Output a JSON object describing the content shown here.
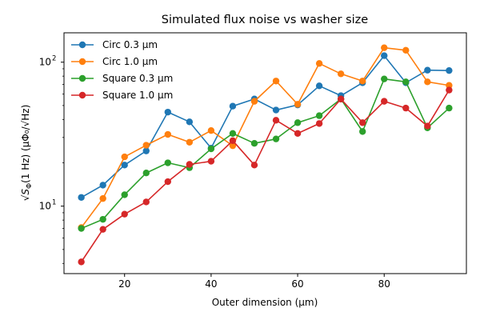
{
  "chart_data": {
    "type": "line",
    "title": "Simulated flux noise vs washer size",
    "xlabel": "Outer dimension (μm)",
    "ylabel": "√S_Φ(1 Hz)   (μΦ₀/√Hz)",
    "xlim": [
      6,
      99
    ],
    "ylim": [
      3.4,
      160
    ],
    "yscale": "log",
    "x_ticks": [
      20,
      40,
      60,
      80
    ],
    "y_ticks": [
      {
        "value": 10,
        "label": "10",
        "sup": "1"
      },
      {
        "value": 100,
        "label": "10",
        "sup": "2"
      }
    ],
    "grid": false,
    "legend_position": "top-left",
    "x": [
      10,
      15,
      20,
      25,
      30,
      35,
      40,
      45,
      50,
      55,
      60,
      65,
      70,
      75,
      80,
      85,
      90,
      95
    ],
    "series": [
      {
        "name": "Circ 0.3 μm",
        "color": "#1f77b4",
        "values": [
          11.5,
          14,
          19.3,
          24.2,
          45,
          38.5,
          25.3,
          49.5,
          55.5,
          46.5,
          50.5,
          68.5,
          58.5,
          72,
          111,
          72,
          88,
          87.5
        ]
      },
      {
        "name": "Circ 1.0 μm",
        "color": "#ff7f0e",
        "values": [
          7.1,
          11.3,
          22,
          26.5,
          31.5,
          27.8,
          33.5,
          26.3,
          53.5,
          74,
          51,
          98,
          83,
          74,
          126,
          121,
          73,
          69
        ]
      },
      {
        "name": "Square 0.3 μm",
        "color": "#2ca02c",
        "values": [
          7,
          8.1,
          12,
          17,
          20,
          18.5,
          25,
          32,
          27.3,
          29.3,
          38,
          42.5,
          55.5,
          33,
          76.5,
          73,
          35,
          48
        ]
      },
      {
        "name": "Square 1.0 μm",
        "color": "#d62728",
        "values": [
          4.1,
          6.9,
          8.8,
          10.7,
          14.8,
          19.5,
          20.5,
          28.5,
          19.3,
          39.5,
          32,
          37.5,
          55.5,
          38,
          53.5,
          48,
          36,
          64
        ]
      }
    ]
  }
}
